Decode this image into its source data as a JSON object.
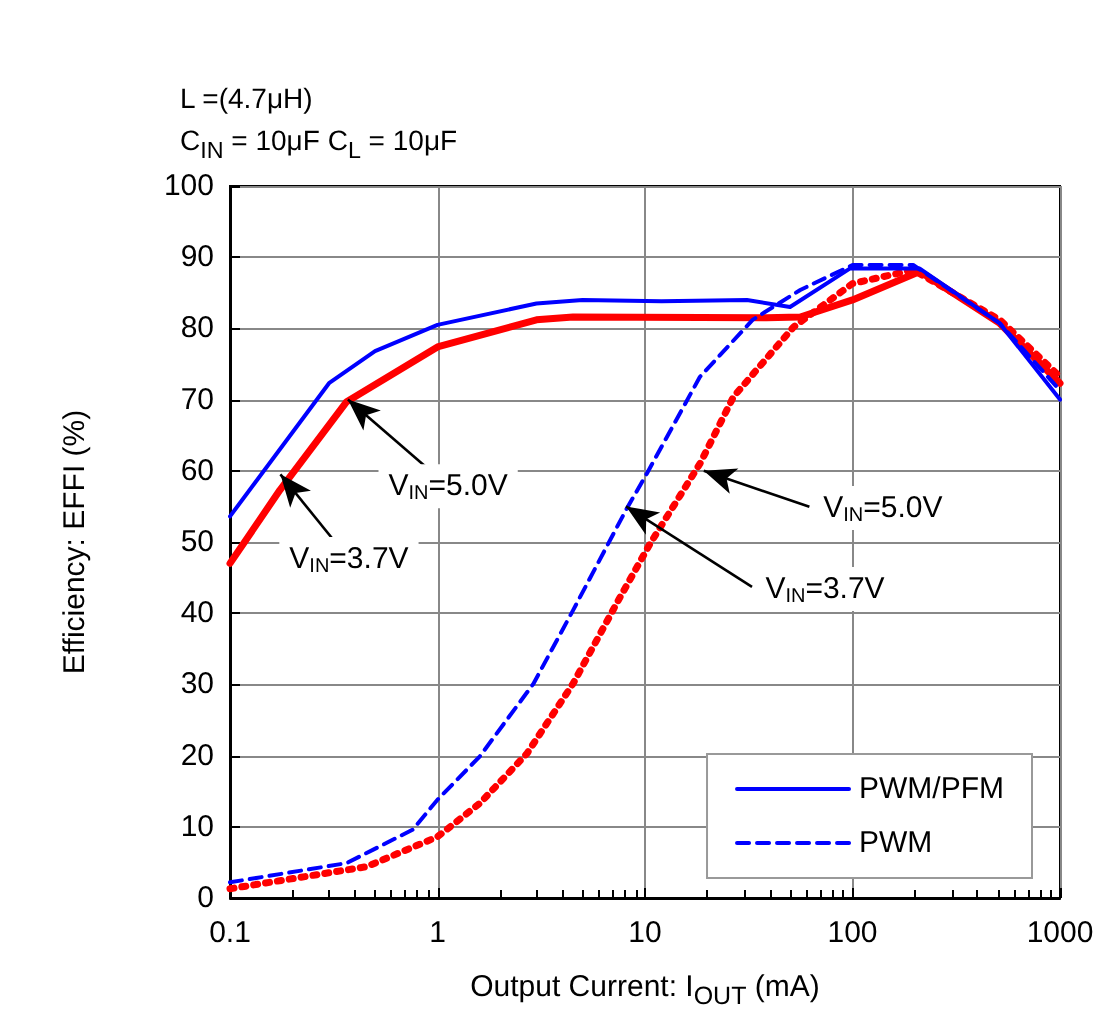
{
  "chart_data": {
    "type": "line",
    "subtitle": [
      "L =(4.7μH)",
      "C$_{IN}$ = 10μF C$_{L}$ = 10μF"
    ],
    "xlabel": "Output Current: I$_{OUT}$ (mA)",
    "ylabel": "Efficiency: EFFI (%)",
    "log": "x",
    "xlim": [
      0.1,
      1000
    ],
    "xticks": [
      0.1,
      1,
      10,
      100,
      1000
    ],
    "ylim": [
      0,
      100
    ],
    "yticks": [
      0,
      10,
      20,
      30,
      40,
      50,
      60,
      70,
      80,
      90,
      100
    ],
    "grid": true,
    "legend": "bottom right",
    "marker": "none",
    "series": [
      {
        "name": "PWM/PFM",
        "color": "#0000ff",
        "line_style": "solid",
        "x": [
          0.1,
          0.3,
          0.5,
          1,
          3,
          5,
          12,
          31,
          50,
          97,
          211,
          513,
          1000
        ],
        "values": [
          53.6,
          72.3,
          76.8,
          80.5,
          83.5,
          84,
          83.8,
          84,
          83,
          88.4,
          88.4,
          80.7,
          70
        ]
      },
      {
        "color": "#ff0000",
        "line_style": "solid",
        "x": [
          0.1,
          0.174,
          0.365,
          1,
          3,
          4.5,
          38.5,
          56,
          100,
          211,
          513,
          1000
        ],
        "values": [
          47,
          57.3,
          69.7,
          77.4,
          81.2,
          81.6,
          81.5,
          81.6,
          84,
          88,
          80.7,
          72.3
        ]
      },
      {
        "name": "PWM",
        "color": "#0000ff",
        "line_style": "dashed",
        "x": [
          0.1,
          0.365,
          0.76,
          1,
          1.6,
          2.9,
          4.5,
          8.1,
          10.2,
          18.4,
          33,
          56,
          100,
          196,
          513,
          1000
        ],
        "values": [
          2.2,
          4.9,
          9.6,
          13.8,
          19.9,
          30.1,
          40.4,
          54.5,
          59.6,
          73.2,
          81.2,
          85.4,
          88.9,
          88.9,
          80.7,
          71.3
        ]
      },
      {
        "color": "#ff0000",
        "line_style": "dotted",
        "x": [
          0.1,
          0.455,
          1,
          1.6,
          2.7,
          4.5,
          7.6,
          10.6,
          18.4,
          26.7,
          52,
          100,
          196,
          513,
          1000
        ],
        "values": [
          1.3,
          4.4,
          8.6,
          13.3,
          20.3,
          30.1,
          42.3,
          49.8,
          61,
          70.4,
          80.2,
          86.3,
          88.2,
          81.2,
          73.2
        ]
      }
    ],
    "annotations": [
      {
        "text": "V$_{IN}$=5.0V",
        "x": 0.37,
        "y": 70
      },
      {
        "text": "V$_{IN}$=3.7V",
        "x": 0.175,
        "y": 59.5
      },
      {
        "text": "V$_{IN}$=5.0V",
        "x": 19.2,
        "y": 60
      },
      {
        "text": "V$_{IN}$=3.7V",
        "x": 8.1,
        "y": 55
      }
    ]
  }
}
